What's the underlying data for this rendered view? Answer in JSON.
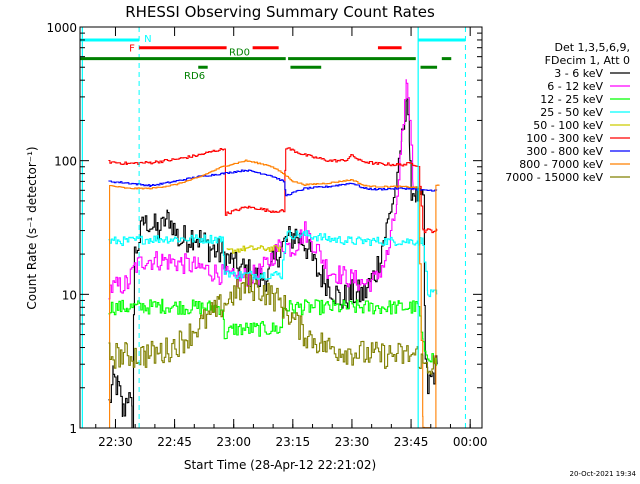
{
  "chart_data": {
    "type": "line",
    "title": "RHESSI Observing Summary Count Rates",
    "xlabel": "Start Time (28-Apr-12 22:21:02)",
    "ylabel": "Count Rate (s⁻¹ detector⁻¹)",
    "footer_date": "20-Oct-2021 19:34",
    "x_range_min": [
      22.35,
      24.05
    ],
    "y_range": [
      1,
      1000
    ],
    "y_scale": "log",
    "x_ticks": [
      {
        "v": 22.5,
        "label": "22:30"
      },
      {
        "v": 22.75,
        "label": "22:45"
      },
      {
        "v": 23.0,
        "label": "23:00"
      },
      {
        "v": 23.25,
        "label": "23:15"
      },
      {
        "v": 23.5,
        "label": "23:30"
      },
      {
        "v": 23.75,
        "label": "23:45"
      },
      {
        "v": 24.0,
        "label": "00:00"
      }
    ],
    "y_ticks": [
      {
        "v": 1,
        "label": "1"
      },
      {
        "v": 10,
        "label": "10"
      },
      {
        "v": 100,
        "label": "100"
      },
      {
        "v": 1000,
        "label": "1000"
      }
    ],
    "legend": {
      "header": [
        "Det 1,3,5,6,9,",
        "FDecim 1, Att 0"
      ],
      "placement": "right"
    },
    "flags": [
      {
        "label": "N",
        "color": "#00ffff",
        "level": 800,
        "segments": [
          [
            22.35,
            22.6
          ],
          [
            23.78,
            23.98
          ]
        ]
      },
      {
        "label": "F",
        "color": "#ff0000",
        "level": 700,
        "segments": [
          [
            22.6,
            22.97
          ],
          [
            23.08,
            23.19
          ],
          [
            23.61,
            23.71
          ]
        ]
      },
      {
        "label": "RD0",
        "color": "#008000",
        "level": 580,
        "segments": [
          [
            22.35,
            23.22
          ],
          [
            23.23,
            23.77
          ],
          [
            23.88,
            23.92
          ]
        ]
      },
      {
        "label": "RD6",
        "color": "#008000",
        "level": 500,
        "segments": [
          [
            22.85,
            22.89
          ],
          [
            23.24,
            23.37
          ],
          [
            23.79,
            23.86
          ]
        ]
      }
    ],
    "cyan_dashed_x": [
      22.6,
      23.98
    ],
    "cyan_solid_x": [
      22.36,
      23.78
    ],
    "series": [
      {
        "name": "3 - 6 keV",
        "color": "#000000",
        "noise": 0.5,
        "points": [
          [
            22.47,
            1.5
          ],
          [
            22.49,
            2.3
          ],
          [
            22.51,
            2.0
          ],
          [
            22.53,
            1.3
          ],
          [
            22.55,
            1.8
          ],
          [
            22.57,
            1.2
          ],
          [
            22.58,
            20
          ],
          [
            22.62,
            35
          ],
          [
            22.68,
            30
          ],
          [
            22.72,
            38
          ],
          [
            22.77,
            25
          ],
          [
            22.83,
            28
          ],
          [
            22.9,
            22
          ],
          [
            22.95,
            20
          ],
          [
            22.98,
            18
          ],
          [
            23.0,
            16
          ],
          [
            23.05,
            15
          ],
          [
            23.1,
            13
          ],
          [
            23.15,
            14
          ],
          [
            23.18,
            20
          ],
          [
            23.22,
            25
          ],
          [
            23.26,
            28
          ],
          [
            23.3,
            24
          ],
          [
            23.35,
            15
          ],
          [
            23.4,
            12
          ],
          [
            23.45,
            9
          ],
          [
            23.5,
            10
          ],
          [
            23.55,
            10
          ],
          [
            23.6,
            15
          ],
          [
            23.65,
            35
          ],
          [
            23.69,
            70
          ],
          [
            23.71,
            150
          ],
          [
            23.73,
            300
          ],
          [
            23.745,
            100
          ],
          [
            23.75,
            60
          ],
          [
            23.77,
            55
          ],
          [
            23.8,
            50
          ],
          [
            23.81,
            3
          ],
          [
            23.82,
            2
          ],
          [
            23.84,
            2.5
          ],
          [
            23.86,
            3
          ]
        ]
      },
      {
        "name": "6 - 12 keV",
        "color": "#ff00ff",
        "noise": 0.35,
        "points": [
          [
            22.47,
            11
          ],
          [
            22.55,
            12
          ],
          [
            22.58,
            16
          ],
          [
            22.62,
            18
          ],
          [
            22.7,
            18
          ],
          [
            22.78,
            17
          ],
          [
            22.85,
            16
          ],
          [
            22.95,
            14
          ],
          [
            23.0,
            13
          ],
          [
            23.1,
            14
          ],
          [
            23.15,
            18
          ],
          [
            23.2,
            24
          ],
          [
            23.25,
            22
          ],
          [
            23.3,
            30
          ],
          [
            23.35,
            22
          ],
          [
            23.4,
            15
          ],
          [
            23.45,
            14
          ],
          [
            23.5,
            13
          ],
          [
            23.55,
            12
          ],
          [
            23.6,
            13
          ],
          [
            23.65,
            20
          ],
          [
            23.69,
            50
          ],
          [
            23.71,
            150
          ],
          [
            23.73,
            400
          ],
          [
            23.745,
            200
          ],
          [
            23.75,
            120
          ],
          [
            23.76,
            60
          ]
        ]
      },
      {
        "name": "12 - 25 keV",
        "color": "#00ff00",
        "noise": 0.25,
        "points": [
          [
            22.47,
            8
          ],
          [
            22.55,
            8
          ],
          [
            22.62,
            8
          ],
          [
            22.7,
            8.2
          ],
          [
            22.8,
            8
          ],
          [
            22.9,
            8
          ],
          [
            22.95,
            8
          ],
          [
            22.96,
            5
          ],
          [
            23.0,
            5.5
          ],
          [
            23.1,
            5.5
          ],
          [
            23.2,
            5.5
          ],
          [
            23.21,
            8
          ],
          [
            23.3,
            8
          ],
          [
            23.4,
            8
          ],
          [
            23.5,
            8
          ],
          [
            23.6,
            8
          ],
          [
            23.7,
            8
          ],
          [
            23.78,
            8
          ],
          [
            23.8,
            4
          ],
          [
            23.86,
            3
          ]
        ]
      },
      {
        "name": "25 - 50 keV",
        "color": "#00ffff",
        "noise": 0.15,
        "points": [
          [
            22.47,
            25
          ],
          [
            22.55,
            25
          ],
          [
            22.65,
            26
          ],
          [
            22.75,
            26
          ],
          [
            22.85,
            26
          ],
          [
            22.95,
            26
          ],
          [
            22.96,
            15
          ],
          [
            23.0,
            14
          ],
          [
            23.1,
            14
          ],
          [
            23.2,
            14
          ],
          [
            23.22,
            28
          ],
          [
            23.3,
            28
          ],
          [
            23.4,
            26
          ],
          [
            23.5,
            25
          ],
          [
            23.6,
            25
          ],
          [
            23.7,
            25
          ],
          [
            23.78,
            25
          ],
          [
            23.8,
            25
          ],
          [
            23.82,
            10
          ],
          [
            23.86,
            10
          ]
        ]
      },
      {
        "name": "50 - 100 keV",
        "color": "#cccc00",
        "noise": 0.1,
        "points": [
          [
            22.97,
            21
          ],
          [
            23.05,
            22
          ],
          [
            23.1,
            22
          ],
          [
            23.2,
            22
          ]
        ]
      },
      {
        "name": "100 - 300 keV",
        "color": "#ff0000",
        "noise": 0.07,
        "points": [
          [
            22.47,
            98
          ],
          [
            22.55,
            95
          ],
          [
            22.65,
            97
          ],
          [
            22.75,
            102
          ],
          [
            22.85,
            110
          ],
          [
            22.93,
            120
          ],
          [
            22.96,
            122
          ],
          [
            22.965,
            40
          ],
          [
            23.0,
            42
          ],
          [
            23.05,
            45
          ],
          [
            23.1,
            44
          ],
          [
            23.15,
            42
          ],
          [
            23.21,
            42
          ],
          [
            23.22,
            125
          ],
          [
            23.3,
            110
          ],
          [
            23.4,
            100
          ],
          [
            23.47,
            100
          ],
          [
            23.5,
            110
          ],
          [
            23.53,
            100
          ],
          [
            23.6,
            95
          ],
          [
            23.7,
            93
          ],
          [
            23.75,
            95
          ],
          [
            23.78,
            92
          ],
          [
            23.8,
            30
          ],
          [
            23.86,
            30
          ]
        ]
      },
      {
        "name": "300 - 800 keV",
        "color": "#0000ff",
        "noise": 0.04,
        "points": [
          [
            22.47,
            70
          ],
          [
            22.55,
            68
          ],
          [
            22.65,
            65
          ],
          [
            22.75,
            70
          ],
          [
            22.85,
            76
          ],
          [
            22.95,
            80
          ],
          [
            23.05,
            85
          ],
          [
            23.15,
            78
          ],
          [
            23.21,
            70
          ],
          [
            23.22,
            55
          ],
          [
            23.3,
            62
          ],
          [
            23.4,
            64
          ],
          [
            23.45,
            66
          ],
          [
            23.5,
            68
          ],
          [
            23.55,
            62
          ],
          [
            23.6,
            61
          ],
          [
            23.7,
            62
          ],
          [
            23.75,
            62
          ],
          [
            23.78,
            60
          ],
          [
            23.86,
            60
          ]
        ]
      },
      {
        "name": "800 - 7000 keV",
        "color": "#ff8000",
        "noise": 0.03,
        "points": [
          [
            22.47,
            1.0
          ],
          [
            22.475,
            65
          ],
          [
            22.55,
            62
          ],
          [
            22.65,
            62
          ],
          [
            22.75,
            66
          ],
          [
            22.85,
            75
          ],
          [
            22.95,
            90
          ],
          [
            23.05,
            100
          ],
          [
            23.15,
            92
          ],
          [
            23.2,
            82
          ],
          [
            23.25,
            70
          ],
          [
            23.3,
            66
          ],
          [
            23.4,
            68
          ],
          [
            23.45,
            70
          ],
          [
            23.5,
            72
          ],
          [
            23.55,
            65
          ],
          [
            23.6,
            64
          ],
          [
            23.7,
            64
          ],
          [
            23.78,
            63
          ],
          [
            23.8,
            1.0
          ],
          [
            23.85,
            1.0
          ],
          [
            23.855,
            65
          ],
          [
            23.87,
            65
          ]
        ]
      },
      {
        "name": "7000 - 15000 keV",
        "color": "#808000",
        "noise": 0.45,
        "points": [
          [
            22.47,
            3.5
          ],
          [
            22.55,
            3.5
          ],
          [
            22.62,
            3.5
          ],
          [
            22.7,
            3.7
          ],
          [
            22.78,
            4.5
          ],
          [
            22.86,
            6
          ],
          [
            22.94,
            8
          ],
          [
            23.0,
            10
          ],
          [
            23.05,
            11.5
          ],
          [
            23.1,
            11
          ],
          [
            23.15,
            10
          ],
          [
            23.2,
            8.5
          ],
          [
            23.25,
            6.5
          ],
          [
            23.3,
            5
          ],
          [
            23.4,
            4
          ],
          [
            23.5,
            3.7
          ],
          [
            23.6,
            3.5
          ],
          [
            23.7,
            3.5
          ],
          [
            23.78,
            3.5
          ],
          [
            23.8,
            3
          ],
          [
            23.85,
            3
          ]
        ]
      }
    ]
  }
}
